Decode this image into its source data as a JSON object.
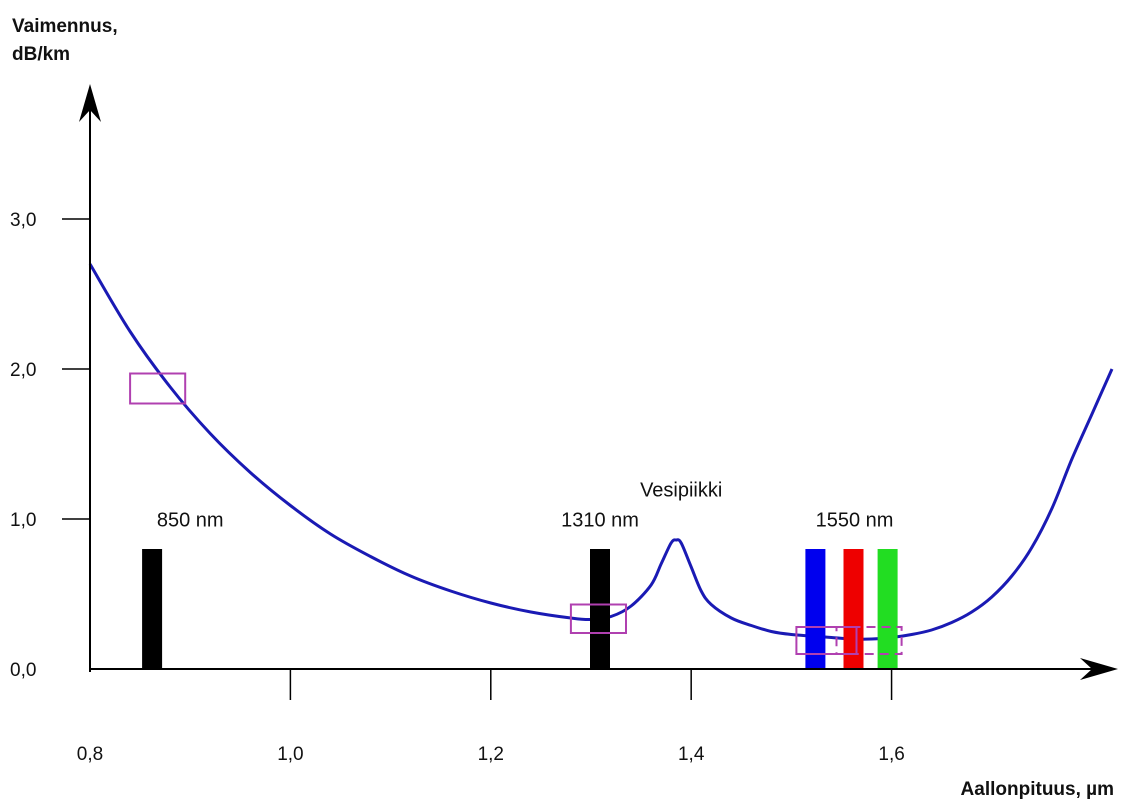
{
  "chart_data": {
    "type": "line",
    "ylabel_lines": [
      "Vaimennus,",
      "dB/km"
    ],
    "xlabel": "Aallonpituus,  µm",
    "xlim": [
      0.8,
      1.82
    ],
    "ylim": [
      0,
      3.6
    ],
    "x_ticks": [
      {
        "value": 0.8,
        "label": "0,8"
      },
      {
        "value": 1.0,
        "label": "1,0"
      },
      {
        "value": 1.2,
        "label": "1,2"
      },
      {
        "value": 1.4,
        "label": "1,4"
      },
      {
        "value": 1.6,
        "label": "1,6"
      }
    ],
    "y_ticks": [
      {
        "value": 0.0,
        "label": "0,0"
      },
      {
        "value": 1.0,
        "label": "1,0"
      },
      {
        "value": 2.0,
        "label": "2,0"
      },
      {
        "value": 3.0,
        "label": "3,0"
      }
    ],
    "series": [
      {
        "color": "#1a1ab4",
        "x": [
          0.8,
          0.84,
          0.88,
          0.92,
          0.96,
          1.0,
          1.04,
          1.08,
          1.12,
          1.16,
          1.2,
          1.24,
          1.28,
          1.3,
          1.32,
          1.34,
          1.36,
          1.37,
          1.38,
          1.385,
          1.39,
          1.4,
          1.41,
          1.42,
          1.44,
          1.46,
          1.48,
          1.5,
          1.52,
          1.54,
          1.56,
          1.58,
          1.6,
          1.62,
          1.64,
          1.66,
          1.68,
          1.7,
          1.72,
          1.74,
          1.76,
          1.78,
          1.8,
          1.82
        ],
        "y": [
          2.7,
          2.25,
          1.88,
          1.57,
          1.31,
          1.09,
          0.9,
          0.75,
          0.62,
          0.52,
          0.44,
          0.38,
          0.34,
          0.33,
          0.35,
          0.42,
          0.56,
          0.7,
          0.84,
          0.86,
          0.84,
          0.68,
          0.52,
          0.43,
          0.34,
          0.29,
          0.25,
          0.23,
          0.22,
          0.21,
          0.2,
          0.2,
          0.21,
          0.23,
          0.26,
          0.31,
          0.38,
          0.48,
          0.62,
          0.81,
          1.07,
          1.4,
          1.7,
          2.0
        ]
      }
    ],
    "bars": [
      {
        "x": 0.862,
        "value": 0.8,
        "color": "#000000"
      },
      {
        "x": 1.309,
        "value": 0.8,
        "color": "#000000"
      },
      {
        "x": 1.524,
        "value": 0.8,
        "color": "#0000ee"
      },
      {
        "x": 1.562,
        "value": 0.8,
        "color": "#ee0000"
      },
      {
        "x": 1.596,
        "value": 0.8,
        "color": "#22dd22"
      }
    ],
    "annotations": [
      {
        "text": "850 nm",
        "x": 0.9,
        "y": 0.95
      },
      {
        "text": "1310 nm",
        "x": 1.309,
        "y": 0.95
      },
      {
        "text": "Vesipiikki",
        "x": 1.39,
        "y": 1.15
      },
      {
        "text": "1550 nm",
        "x": 1.563,
        "y": 0.95
      }
    ],
    "markers": [
      {
        "x0": 0.84,
        "x1": 0.895,
        "y0": 1.77,
        "y1": 1.97,
        "style": "solid"
      },
      {
        "x0": 1.28,
        "x1": 1.335,
        "y0": 0.24,
        "y1": 0.43,
        "style": "solid"
      },
      {
        "x0": 1.505,
        "x1": 1.565,
        "y0": 0.1,
        "y1": 0.28,
        "style": "solid"
      },
      {
        "x0": 1.545,
        "x1": 1.61,
        "y0": 0.1,
        "y1": 0.28,
        "style": "dashed"
      }
    ],
    "marker_color": "#b040b0"
  }
}
